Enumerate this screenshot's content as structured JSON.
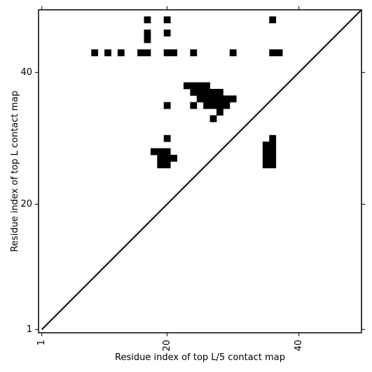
{
  "chart_data": {
    "type": "heatmap",
    "title": "",
    "xlabel": "Residue index of top L/5 contact map",
    "ylabel": "Residue index of top L contact map",
    "xlim": [
      0.5,
      49.5
    ],
    "ylim": [
      0.5,
      49.5
    ],
    "x_ticks": [
      1,
      20,
      40
    ],
    "y_ticks": [
      1,
      20,
      40
    ],
    "x_tick_labels": [
      "1",
      "20",
      "40"
    ],
    "y_tick_labels": [
      "1",
      "20",
      "40"
    ],
    "x_tick_rotation": 270,
    "diagonal": true,
    "grid": false,
    "legend": "none",
    "cell_color": "#000000",
    "background_color": "#ffffff",
    "cells": [
      [
        17,
        48
      ],
      [
        20,
        48
      ],
      [
        36,
        48
      ],
      [
        17,
        46
      ],
      [
        20,
        46
      ],
      [
        17,
        45
      ],
      [
        9,
        43
      ],
      [
        11,
        43
      ],
      [
        13,
        43
      ],
      [
        16,
        43
      ],
      [
        17,
        43
      ],
      [
        20,
        43
      ],
      [
        21,
        43
      ],
      [
        24,
        43
      ],
      [
        30,
        43
      ],
      [
        36,
        43
      ],
      [
        37,
        43
      ],
      [
        23,
        38
      ],
      [
        24,
        38
      ],
      [
        25,
        38
      ],
      [
        26,
        38
      ],
      [
        24,
        37
      ],
      [
        25,
        37
      ],
      [
        26,
        37
      ],
      [
        27,
        37
      ],
      [
        28,
        37
      ],
      [
        25,
        36
      ],
      [
        26,
        36
      ],
      [
        27,
        36
      ],
      [
        28,
        36
      ],
      [
        29,
        36
      ],
      [
        30,
        36
      ],
      [
        20,
        35
      ],
      [
        24,
        35
      ],
      [
        26,
        35
      ],
      [
        27,
        35
      ],
      [
        28,
        35
      ],
      [
        29,
        35
      ],
      [
        28,
        34
      ],
      [
        27,
        33
      ],
      [
        20,
        30
      ],
      [
        36,
        30
      ],
      [
        35,
        29
      ],
      [
        36,
        29
      ],
      [
        18,
        28
      ],
      [
        19,
        28
      ],
      [
        20,
        28
      ],
      [
        35,
        28
      ],
      [
        36,
        28
      ],
      [
        19,
        27
      ],
      [
        20,
        27
      ],
      [
        21,
        27
      ],
      [
        35,
        27
      ],
      [
        36,
        27
      ],
      [
        19,
        26
      ],
      [
        20,
        26
      ],
      [
        35,
        26
      ],
      [
        36,
        26
      ]
    ]
  }
}
